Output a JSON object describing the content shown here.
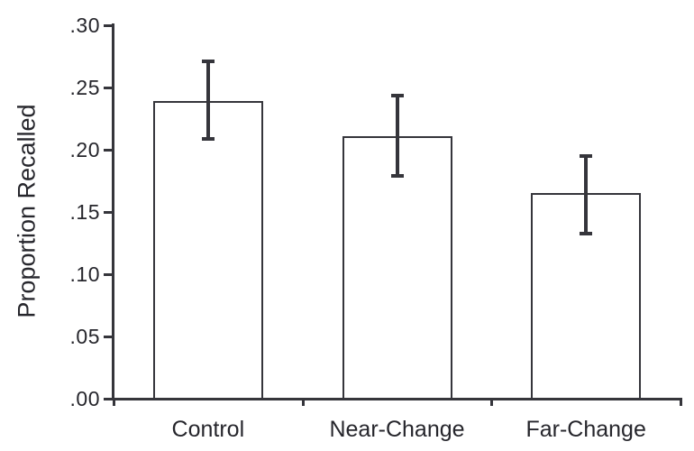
{
  "chart_data": {
    "type": "bar",
    "title": "",
    "categories": [
      "Control",
      "Near-Change",
      "Far-Change"
    ],
    "values": [
      0.239,
      0.211,
      0.165
    ],
    "error_upper": [
      0.272,
      0.244,
      0.196
    ],
    "error_lower": [
      0.208,
      0.178,
      0.132
    ],
    "xlabel": "",
    "ylabel": "Proportion Recalled",
    "ylim": [
      0.0,
      0.3
    ],
    "ytick_values": [
      0.0,
      0.05,
      0.1,
      0.15,
      0.2,
      0.25,
      0.3
    ],
    "ytick_labels": [
      ".00",
      ".05",
      ".10",
      ".15",
      ".20",
      ".25",
      ".30"
    ],
    "grid": false,
    "legend_position": "none",
    "bar_fill_color": "#ffffff",
    "line_color": "#35353b",
    "text_color": "#26262c"
  }
}
